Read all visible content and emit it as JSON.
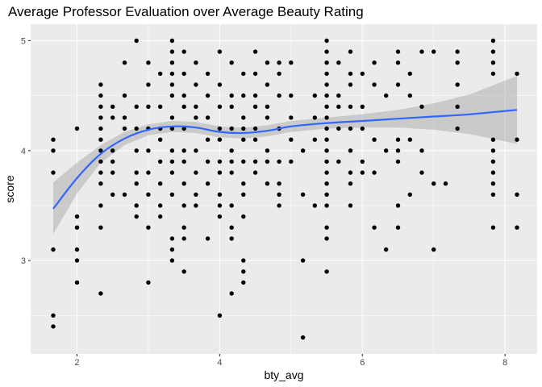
{
  "chart_data": {
    "type": "scatter",
    "title": "Average Professor Evaluation over Average Beauty Rating",
    "xlabel": "bty_avg",
    "ylabel": "score",
    "xlim": [
      1.35,
      8.45
    ],
    "ylim": [
      2.15,
      5.15
    ],
    "x_ticks": [
      2,
      4,
      6,
      8
    ],
    "y_ticks": [
      3,
      4,
      5
    ],
    "x_tick_labels": [
      "2",
      "4",
      "6",
      "8"
    ],
    "y_tick_labels": [
      "3",
      "4",
      "5"
    ],
    "grid": true,
    "panel_color": "#ebebeb",
    "grid_color": "#ffffff",
    "point_color": "#000000",
    "points": [
      [
        1.667,
        4.1
      ],
      [
        1.667,
        4.0
      ],
      [
        1.667,
        3.8
      ],
      [
        1.667,
        3.1
      ],
      [
        1.667,
        2.5
      ],
      [
        1.667,
        2.4
      ],
      [
        2.0,
        4.2
      ],
      [
        2.0,
        3.4
      ],
      [
        2.0,
        3.3
      ],
      [
        2.0,
        3.1
      ],
      [
        2.0,
        3.0
      ],
      [
        2.0,
        2.8
      ],
      [
        2.333,
        4.6
      ],
      [
        2.333,
        4.5
      ],
      [
        2.333,
        4.4
      ],
      [
        2.333,
        4.3
      ],
      [
        2.333,
        4.2
      ],
      [
        2.333,
        4.1
      ],
      [
        2.333,
        4.0
      ],
      [
        2.333,
        3.9
      ],
      [
        2.333,
        3.8
      ],
      [
        2.333,
        3.7
      ],
      [
        2.333,
        3.5
      ],
      [
        2.333,
        3.3
      ],
      [
        2.333,
        2.7
      ],
      [
        2.5,
        4.4
      ],
      [
        2.5,
        4.3
      ],
      [
        2.5,
        4.0
      ],
      [
        2.5,
        3.9
      ],
      [
        2.5,
        3.8
      ],
      [
        2.5,
        3.6
      ],
      [
        2.667,
        4.8
      ],
      [
        2.667,
        4.5
      ],
      [
        2.667,
        4.3
      ],
      [
        2.667,
        4.2
      ],
      [
        2.667,
        3.6
      ],
      [
        2.833,
        5.0
      ],
      [
        2.833,
        4.4
      ],
      [
        2.833,
        4.2
      ],
      [
        2.833,
        4.0
      ],
      [
        2.833,
        3.8
      ],
      [
        2.833,
        3.7
      ],
      [
        2.833,
        3.5
      ],
      [
        2.833,
        3.4
      ],
      [
        3.0,
        4.8
      ],
      [
        3.0,
        4.6
      ],
      [
        3.0,
        4.4
      ],
      [
        3.0,
        4.2
      ],
      [
        3.0,
        4.0
      ],
      [
        3.0,
        3.8
      ],
      [
        3.0,
        3.6
      ],
      [
        3.0,
        3.3
      ],
      [
        3.0,
        2.8
      ],
      [
        3.167,
        4.7
      ],
      [
        3.167,
        4.4
      ],
      [
        3.167,
        4.2
      ],
      [
        3.167,
        4.1
      ],
      [
        3.167,
        3.9
      ],
      [
        3.167,
        3.7
      ],
      [
        3.167,
        3.5
      ],
      [
        3.167,
        3.4
      ],
      [
        3.333,
        5.0
      ],
      [
        3.333,
        4.9
      ],
      [
        3.333,
        4.8
      ],
      [
        3.333,
        4.7
      ],
      [
        3.333,
        4.6
      ],
      [
        3.333,
        4.5
      ],
      [
        3.333,
        4.3
      ],
      [
        3.333,
        4.2
      ],
      [
        3.333,
        4.0
      ],
      [
        3.333,
        3.9
      ],
      [
        3.333,
        3.8
      ],
      [
        3.333,
        3.6
      ],
      [
        3.333,
        3.2
      ],
      [
        3.333,
        3.1
      ],
      [
        3.333,
        3.0
      ],
      [
        3.5,
        4.9
      ],
      [
        3.5,
        4.7
      ],
      [
        3.5,
        4.5
      ],
      [
        3.5,
        4.4
      ],
      [
        3.5,
        4.2
      ],
      [
        3.5,
        4.0
      ],
      [
        3.5,
        3.9
      ],
      [
        3.5,
        3.7
      ],
      [
        3.5,
        3.5
      ],
      [
        3.5,
        3.3
      ],
      [
        3.5,
        3.2
      ],
      [
        3.5,
        2.9
      ],
      [
        3.667,
        4.8
      ],
      [
        3.667,
        4.6
      ],
      [
        3.667,
        4.4
      ],
      [
        3.667,
        4.3
      ],
      [
        3.667,
        4.0
      ],
      [
        3.667,
        3.8
      ],
      [
        3.667,
        3.6
      ],
      [
        3.667,
        3.5
      ],
      [
        3.833,
        4.7
      ],
      [
        3.833,
        4.5
      ],
      [
        3.833,
        4.3
      ],
      [
        3.833,
        4.1
      ],
      [
        3.833,
        3.9
      ],
      [
        3.833,
        3.7
      ],
      [
        3.833,
        3.2
      ],
      [
        4.0,
        4.9
      ],
      [
        4.0,
        4.6
      ],
      [
        4.0,
        4.4
      ],
      [
        4.0,
        4.2
      ],
      [
        4.0,
        4.1
      ],
      [
        4.0,
        3.9
      ],
      [
        4.0,
        3.8
      ],
      [
        4.0,
        3.6
      ],
      [
        4.0,
        3.5
      ],
      [
        4.0,
        3.4
      ],
      [
        4.0,
        2.5
      ],
      [
        4.167,
        4.8
      ],
      [
        4.167,
        4.5
      ],
      [
        4.167,
        4.4
      ],
      [
        4.167,
        4.2
      ],
      [
        4.167,
        4.0
      ],
      [
        4.167,
        3.9
      ],
      [
        4.167,
        3.8
      ],
      [
        4.167,
        3.5
      ],
      [
        4.167,
        3.3
      ],
      [
        4.167,
        3.2
      ],
      [
        4.167,
        2.7
      ],
      [
        4.333,
        4.7
      ],
      [
        4.333,
        4.5
      ],
      [
        4.333,
        4.3
      ],
      [
        4.333,
        4.2
      ],
      [
        4.333,
        4.1
      ],
      [
        4.333,
        3.9
      ],
      [
        4.333,
        3.7
      ],
      [
        4.333,
        3.6
      ],
      [
        4.333,
        3.4
      ],
      [
        4.333,
        3.0
      ],
      [
        4.333,
        2.9
      ],
      [
        4.333,
        2.8
      ],
      [
        4.5,
        4.9
      ],
      [
        4.5,
        4.7
      ],
      [
        4.5,
        4.5
      ],
      [
        4.5,
        4.4
      ],
      [
        4.5,
        4.2
      ],
      [
        4.5,
        4.1
      ],
      [
        4.5,
        3.9
      ],
      [
        4.5,
        3.8
      ],
      [
        4.667,
        4.8
      ],
      [
        4.667,
        4.6
      ],
      [
        4.667,
        4.4
      ],
      [
        4.667,
        4.3
      ],
      [
        4.667,
        4.0
      ],
      [
        4.667,
        3.9
      ],
      [
        4.667,
        3.7
      ],
      [
        4.833,
        4.8
      ],
      [
        4.833,
        4.7
      ],
      [
        4.833,
        4.5
      ],
      [
        4.833,
        4.2
      ],
      [
        4.833,
        3.9
      ],
      [
        4.833,
        3.7
      ],
      [
        4.833,
        3.6
      ],
      [
        4.833,
        3.5
      ],
      [
        5.0,
        4.8
      ],
      [
        5.0,
        4.5
      ],
      [
        5.0,
        4.3
      ],
      [
        5.0,
        4.1
      ],
      [
        5.0,
        3.9
      ],
      [
        5.167,
        4.0
      ],
      [
        5.167,
        3.6
      ],
      [
        5.167,
        3.0
      ],
      [
        5.167,
        2.3
      ],
      [
        5.333,
        4.5
      ],
      [
        5.333,
        4.3
      ],
      [
        5.333,
        4.1
      ],
      [
        5.333,
        3.5
      ],
      [
        5.5,
        5.0
      ],
      [
        5.5,
        4.9
      ],
      [
        5.5,
        4.8
      ],
      [
        5.5,
        4.7
      ],
      [
        5.5,
        4.6
      ],
      [
        5.5,
        4.5
      ],
      [
        5.5,
        4.4
      ],
      [
        5.5,
        4.3
      ],
      [
        5.5,
        4.2
      ],
      [
        5.5,
        4.1
      ],
      [
        5.5,
        4.0
      ],
      [
        5.5,
        3.9
      ],
      [
        5.5,
        3.8
      ],
      [
        5.5,
        3.7
      ],
      [
        5.5,
        3.6
      ],
      [
        5.5,
        3.5
      ],
      [
        5.5,
        3.3
      ],
      [
        5.5,
        3.2
      ],
      [
        5.5,
        2.9
      ],
      [
        5.667,
        4.8
      ],
      [
        5.667,
        4.5
      ],
      [
        5.667,
        4.4
      ],
      [
        5.667,
        4.2
      ],
      [
        5.667,
        3.9
      ],
      [
        5.833,
        4.9
      ],
      [
        5.833,
        4.7
      ],
      [
        5.833,
        4.6
      ],
      [
        5.833,
        4.4
      ],
      [
        5.833,
        4.2
      ],
      [
        5.833,
        4.0
      ],
      [
        5.833,
        3.8
      ],
      [
        5.833,
        3.7
      ],
      [
        5.833,
        3.5
      ],
      [
        6.0,
        4.7
      ],
      [
        6.0,
        4.4
      ],
      [
        6.0,
        4.2
      ],
      [
        6.0,
        3.9
      ],
      [
        6.0,
        3.8
      ],
      [
        6.167,
        4.8
      ],
      [
        6.167,
        4.6
      ],
      [
        6.167,
        4.1
      ],
      [
        6.167,
        3.8
      ],
      [
        6.167,
        3.3
      ],
      [
        6.333,
        4.5
      ],
      [
        6.333,
        4.0
      ],
      [
        6.333,
        3.1
      ],
      [
        6.5,
        4.9
      ],
      [
        6.5,
        4.8
      ],
      [
        6.5,
        4.6
      ],
      [
        6.5,
        4.1
      ],
      [
        6.5,
        4.0
      ],
      [
        6.5,
        3.9
      ],
      [
        6.5,
        3.5
      ],
      [
        6.5,
        3.3
      ],
      [
        6.667,
        4.7
      ],
      [
        6.667,
        4.5
      ],
      [
        6.667,
        4.1
      ],
      [
        6.667,
        3.6
      ],
      [
        6.833,
        4.9
      ],
      [
        6.833,
        4.4
      ],
      [
        6.833,
        4.0
      ],
      [
        6.833,
        3.8
      ],
      [
        7.0,
        4.9
      ],
      [
        7.0,
        3.7
      ],
      [
        7.0,
        3.1
      ],
      [
        7.167,
        3.7
      ],
      [
        7.333,
        4.9
      ],
      [
        7.333,
        4.8
      ],
      [
        7.333,
        4.6
      ],
      [
        7.333,
        4.4
      ],
      [
        7.333,
        4.2
      ],
      [
        7.833,
        5.0
      ],
      [
        7.833,
        4.9
      ],
      [
        7.833,
        4.8
      ],
      [
        7.833,
        4.7
      ],
      [
        7.833,
        4.1
      ],
      [
        7.833,
        4.0
      ],
      [
        7.833,
        3.9
      ],
      [
        7.833,
        3.8
      ],
      [
        7.833,
        3.7
      ],
      [
        7.833,
        3.6
      ],
      [
        7.833,
        3.3
      ],
      [
        8.167,
        4.7
      ],
      [
        8.167,
        4.1
      ],
      [
        8.167,
        3.6
      ],
      [
        8.167,
        3.3
      ]
    ],
    "smooth": {
      "method": "loess",
      "color": "#3366ff",
      "band_color": "#999999",
      "x": [
        1.667,
        2.0,
        2.333,
        2.667,
        3.0,
        3.333,
        3.667,
        4.0,
        4.333,
        4.667,
        5.0,
        5.5,
        6.0,
        6.5,
        7.0,
        7.5,
        8.167
      ],
      "y": [
        3.47,
        3.75,
        3.97,
        4.11,
        4.19,
        4.22,
        4.21,
        4.17,
        4.16,
        4.18,
        4.22,
        4.25,
        4.27,
        4.29,
        4.31,
        4.33,
        4.37
      ],
      "lower": [
        3.24,
        3.61,
        3.89,
        4.05,
        4.14,
        4.17,
        4.16,
        4.12,
        4.11,
        4.13,
        4.17,
        4.2,
        4.21,
        4.21,
        4.19,
        4.15,
        4.06
      ],
      "upper": [
        3.71,
        3.89,
        4.05,
        4.17,
        4.24,
        4.27,
        4.26,
        4.22,
        4.21,
        4.23,
        4.27,
        4.3,
        4.33,
        4.37,
        4.43,
        4.51,
        4.68
      ]
    }
  }
}
